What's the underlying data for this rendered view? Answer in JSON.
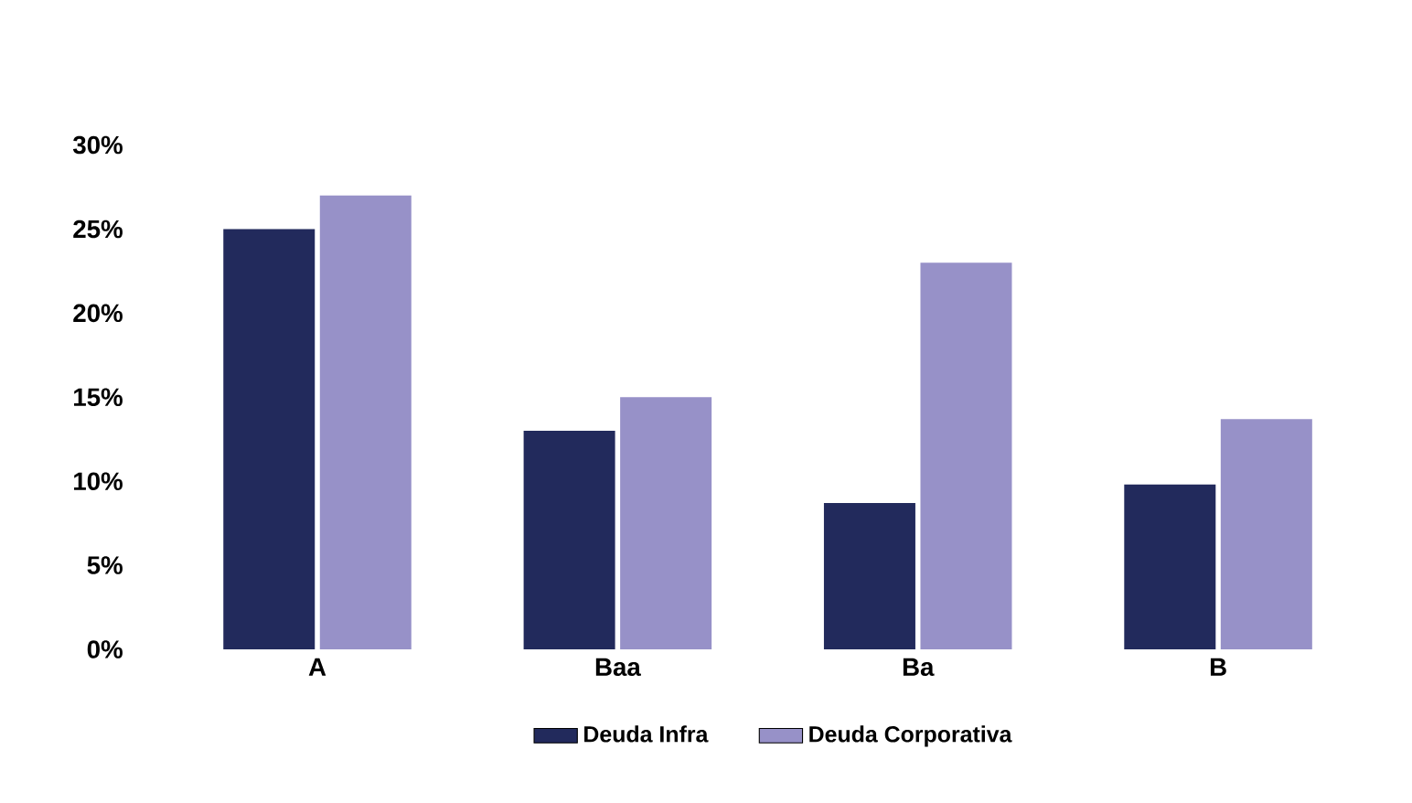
{
  "chart_data": {
    "type": "bar",
    "categories": [
      "A",
      "Baa",
      "Ba",
      "B"
    ],
    "series": [
      {
        "name": "Deuda Infra",
        "color": "#222a5c",
        "values": [
          25,
          13,
          8.7,
          9.8
        ]
      },
      {
        "name": "Deuda Corporativa",
        "color": "#9791c8",
        "values": [
          27,
          15,
          23,
          13.7
        ]
      }
    ],
    "ylim": [
      0,
      30
    ],
    "yticks": [
      {
        "value": 0,
        "label": "0%"
      },
      {
        "value": 5,
        "label": "5%"
      },
      {
        "value": 10,
        "label": "10%"
      },
      {
        "value": 15,
        "label": "15%"
      },
      {
        "value": 20,
        "label": "20%"
      },
      {
        "value": 25,
        "label": "25%"
      },
      {
        "value": 30,
        "label": "30%"
      }
    ],
    "grid": false,
    "legend": "bottom"
  }
}
